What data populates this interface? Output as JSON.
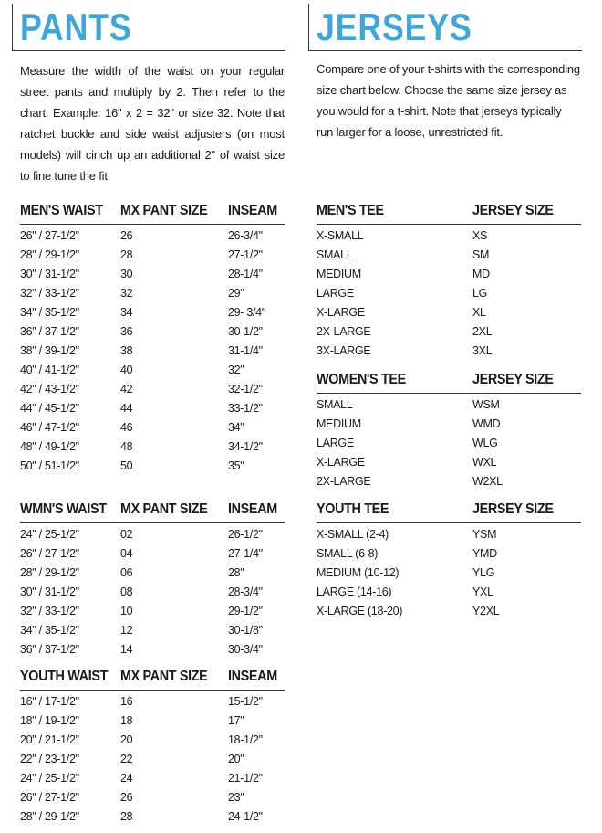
{
  "pants": {
    "title": "PANTS",
    "description": "Measure the width of the waist on your regular street pants and multiply by 2. Then refer to the chart. Example: 16\" x 2 = 32\" or size 32. Note that ratchet buckle and side waist adjusters (on most models) will cinch up an additional 2\" of waist size to fine tune the fit.",
    "tables": [
      {
        "headers": [
          "MEN'S WAIST",
          "MX PANT SIZE",
          "INSEAM"
        ],
        "rows": [
          [
            "26\" / 27-1/2\"",
            "26",
            "26-3/4\""
          ],
          [
            "28\" / 29-1/2\"",
            "28",
            "27-1/2\""
          ],
          [
            "30\" / 31-1/2\"",
            "30",
            "28-1/4\""
          ],
          [
            "32\" / 33-1/2\"",
            "32",
            "29\""
          ],
          [
            "34\" / 35-1/2\"",
            "34",
            "29- 3/4\""
          ],
          [
            "36\" / 37-1/2\"",
            "36",
            "30-1/2\""
          ],
          [
            "38\" / 39-1/2\"",
            "38",
            "31-1/4\""
          ],
          [
            "40\" / 41-1/2\"",
            "40",
            "32\""
          ],
          [
            "42\" / 43-1/2\"",
            "42",
            "32-1/2\""
          ],
          [
            "44\" / 45-1/2\"",
            "44",
            "33-1/2\""
          ],
          [
            "46\" / 47-1/2\"",
            "46",
            "34\""
          ],
          [
            "48\" / 49-1/2\"",
            "48",
            "34-1/2\""
          ],
          [
            "50\" / 51-1/2\"",
            "50",
            "35\""
          ]
        ]
      },
      {
        "headers": [
          "WMN'S WAIST",
          "MX PANT SIZE",
          "INSEAM"
        ],
        "rows": [
          [
            "24\" / 25-1/2\"",
            "02",
            "26-1/2\""
          ],
          [
            "26\" / 27-1/2\"",
            "04",
            "27-1/4\""
          ],
          [
            "28\" / 29-1/2\"",
            "06",
            "28\""
          ],
          [
            "30\" / 31-1/2\"",
            "08",
            "28-3/4\""
          ],
          [
            "32\" / 33-1/2\"",
            "10",
            "29-1/2\""
          ],
          [
            "34\" / 35-1/2\"",
            "12",
            "30-1/8\""
          ],
          [
            "36\" / 37-1/2\"",
            "14",
            "30-3/4\""
          ]
        ]
      },
      {
        "headers": [
          "YOUTH WAIST",
          "MX PANT SIZE",
          "INSEAM"
        ],
        "rows": [
          [
            "16\" / 17-1/2\"",
            "16",
            "15-1/2\""
          ],
          [
            "18\" / 19-1/2\"",
            "18",
            "17\""
          ],
          [
            "20\" / 21-1/2\"",
            "20",
            "18-1/2\""
          ],
          [
            "22\" / 23-1/2\"",
            "22",
            "20\""
          ],
          [
            "24\" / 25-1/2\"",
            "24",
            "21-1/2\""
          ],
          [
            "26\" / 27-1/2\"",
            "26",
            "23\""
          ],
          [
            "28\" / 29-1/2\"",
            "28",
            "24-1/2\""
          ]
        ]
      }
    ]
  },
  "jerseys": {
    "title": "JERSEYS",
    "description": "Compare one of your t-shirts with the corresponding size chart below. Choose the same size jersey as you would for a t-shirt. Note that jerseys typically run larger for a loose, unrestricted fit.",
    "tables": [
      {
        "headers": [
          "MEN'S TEE",
          "JERSEY SIZE"
        ],
        "rows": [
          [
            "X-SMALL",
            "XS"
          ],
          [
            "SMALL",
            "SM"
          ],
          [
            "MEDIUM",
            "MD"
          ],
          [
            "LARGE",
            "LG"
          ],
          [
            "X-LARGE",
            "XL"
          ],
          [
            "2X-LARGE",
            "2XL"
          ],
          [
            "3X-LARGE",
            "3XL"
          ]
        ]
      },
      {
        "headers": [
          "WOMEN'S TEE",
          "JERSEY SIZE"
        ],
        "rows": [
          [
            "SMALL",
            "WSM"
          ],
          [
            "MEDIUM",
            "WMD"
          ],
          [
            "LARGE",
            "WLG"
          ],
          [
            "X-LARGE",
            "WXL"
          ],
          [
            "2X-LARGE",
            "W2XL"
          ]
        ]
      },
      {
        "headers": [
          "YOUTH TEE",
          "JERSEY SIZE"
        ],
        "rows": [
          [
            "X-SMALL (2-4)",
            "YSM"
          ],
          [
            "SMALL (6-8)",
            "YMD"
          ],
          [
            "MEDIUM (10-12)",
            "YLG"
          ],
          [
            "LARGE (14-16)",
            "YXL"
          ],
          [
            "X-LARGE (18-20)",
            "Y2XL"
          ]
        ]
      }
    ]
  }
}
